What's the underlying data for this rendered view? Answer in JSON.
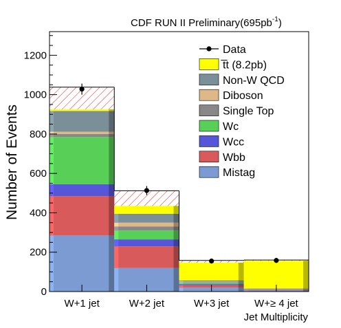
{
  "header": {
    "experiment": "CDF RUN II Preliminary",
    "lumi": "(695pb",
    "lumi_exp": "-1",
    "lumi_close": ")"
  },
  "chart_data": {
    "type": "bar",
    "stacked": true,
    "categories": [
      "W+1 jet",
      "W+2 jet",
      "W+3 jet",
      "W+≥ 4 jet"
    ],
    "xlabel": "Jet Multiplicity",
    "ylabel": "Number of Events",
    "ylim": [
      0,
      1320
    ],
    "yticks": [
      0,
      200,
      400,
      600,
      800,
      1000,
      1200
    ],
    "grid": false,
    "legend_position": "top-right",
    "series": [
      {
        "name": "Mistag",
        "color": "#7b9bd2",
        "values": [
          285,
          120,
          20,
          6
        ]
      },
      {
        "name": "Wbb",
        "color": "#d95a5a",
        "values": [
          200,
          110,
          12,
          3
        ]
      },
      {
        "name": "Wcc",
        "color": "#5656d8",
        "values": [
          60,
          35,
          6,
          2
        ]
      },
      {
        "name": "Wc",
        "color": "#58d058",
        "values": [
          240,
          45,
          6,
          1
        ]
      },
      {
        "name": "Single Top",
        "color": "#888888",
        "values": [
          15,
          20,
          3,
          1
        ]
      },
      {
        "name": "Diboson",
        "color": "#deb887",
        "values": [
          12,
          20,
          4,
          1
        ]
      },
      {
        "name": "Non-W QCD",
        "color": "#7a8f97",
        "values": [
          105,
          45,
          6,
          2
        ]
      },
      {
        "name": "t̅t (8.2pb)",
        "color": "#ffff00",
        "values": [
          8,
          40,
          90,
          140
        ]
      }
    ],
    "uncertainty_top": [
      1038,
      512,
      158,
      160
    ],
    "data": {
      "name": "Data",
      "values": [
        1028,
        513,
        155,
        158
      ],
      "errors": [
        28,
        23,
        12,
        13
      ]
    }
  }
}
